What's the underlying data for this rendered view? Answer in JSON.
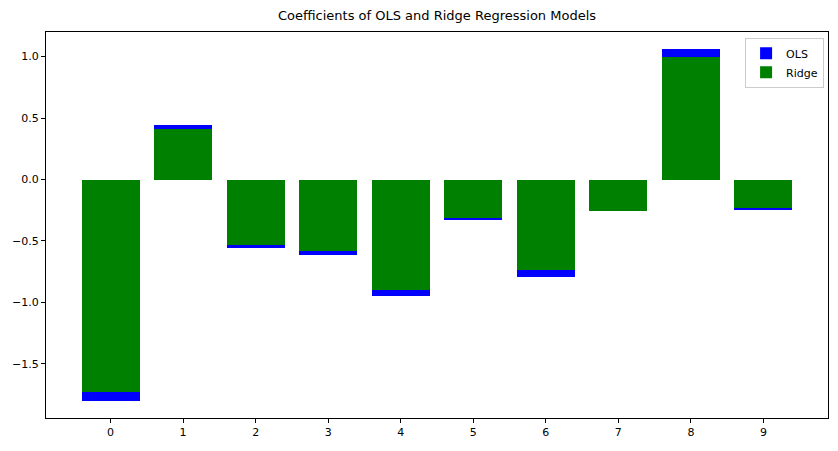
{
  "chart_data": {
    "type": "bar",
    "title": "Coefficients of OLS and Ridge Regression Models",
    "x": [
      0,
      1,
      2,
      3,
      4,
      5,
      6,
      7,
      8,
      9
    ],
    "series": [
      {
        "name": "OLS",
        "color": "blue",
        "values": [
          -1.8,
          0.44,
          -0.56,
          -0.61,
          -0.95,
          -0.33,
          -0.79,
          -0.26,
          1.06,
          -0.25
        ]
      },
      {
        "name": "Ridge",
        "color": "green",
        "values": [
          -1.73,
          0.41,
          -0.53,
          -0.58,
          -0.9,
          -0.31,
          -0.74,
          -0.26,
          1.0,
          -0.23
        ]
      }
    ],
    "xlim": [
      -0.89,
      9.89
    ],
    "xticks": [
      0,
      1,
      2,
      3,
      4,
      5,
      6,
      7,
      8,
      9
    ],
    "ylim": [
      -1.94,
      1.2
    ],
    "yticks": [
      {
        "value": -1.5,
        "label": "−1.5"
      },
      {
        "value": -1.0,
        "label": "−1.0"
      },
      {
        "value": -0.5,
        "label": "−0.5"
      },
      {
        "value": 0.0,
        "label": "0.0"
      },
      {
        "value": 0.5,
        "label": "0.5"
      },
      {
        "value": 1.0,
        "label": "1.0"
      }
    ],
    "grid": false,
    "legend": "upper right"
  }
}
